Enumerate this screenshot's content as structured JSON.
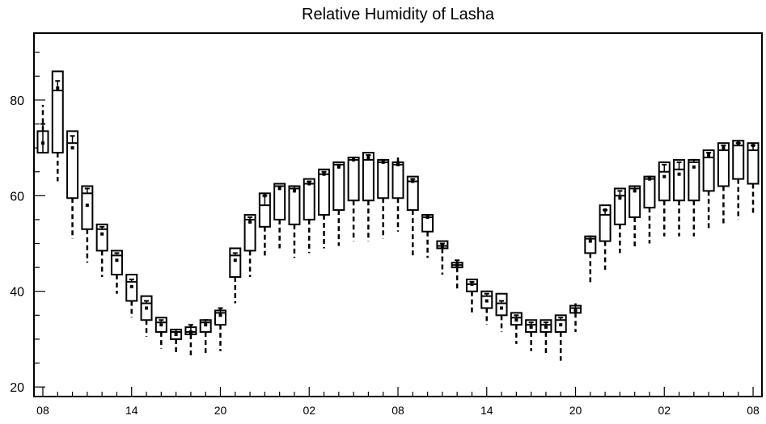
{
  "chart_data": {
    "type": "box",
    "title": "Relative Humidity of Lasha",
    "xlabel": "",
    "ylabel": "",
    "ylim": [
      18,
      94
    ],
    "y_ticks": [
      20,
      40,
      60,
      80
    ],
    "x_tick_labels": [
      "08",
      "14",
      "20",
      "02",
      "08",
      "14",
      "20",
      "02",
      "08"
    ],
    "x_tick_positions": [
      0,
      6,
      12,
      18,
      24,
      30,
      36,
      42,
      48
    ],
    "x_range": [
      -0.6,
      48.6
    ],
    "series": [
      {
        "x": 0,
        "q1": 69.0,
        "q3": 73.5,
        "median": 69.0,
        "top": 75.0,
        "bottom": 69.0,
        "wmax": 79.0,
        "wmin": 69.0,
        "mean": 71.0
      },
      {
        "x": 1,
        "q1": 69.0,
        "q3": 86.0,
        "median": 82.0,
        "top": 84.0,
        "bottom": 69.0,
        "wmax": 86.0,
        "wmin": 63.0,
        "mean": 82.5
      },
      {
        "x": 2,
        "q1": 59.5,
        "q3": 73.5,
        "median": 71.0,
        "top": 72.5,
        "bottom": 59.5,
        "wmax": 73.5,
        "wmin": 51.0,
        "mean": 70.0
      },
      {
        "x": 3,
        "q1": 53.0,
        "q3": 62.0,
        "median": 60.5,
        "top": 61.5,
        "bottom": 53.0,
        "wmax": 62.0,
        "wmin": 46.0,
        "mean": 58.0
      },
      {
        "x": 4,
        "q1": 48.5,
        "q3": 54.0,
        "median": 53.0,
        "top": 53.5,
        "bottom": 48.5,
        "wmax": 54.0,
        "wmin": 43.0,
        "mean": 52.0
      },
      {
        "x": 5,
        "q1": 43.5,
        "q3": 48.5,
        "median": 47.5,
        "top": 48.0,
        "bottom": 43.5,
        "wmax": 48.5,
        "wmin": 39.5,
        "mean": 46.5
      },
      {
        "x": 6,
        "q1": 38.0,
        "q3": 43.5,
        "median": 42.0,
        "top": 42.5,
        "bottom": 38.0,
        "wmax": 43.5,
        "wmin": 34.5,
        "mean": 41.0
      },
      {
        "x": 7,
        "q1": 34.0,
        "q3": 39.0,
        "median": 37.5,
        "top": 38.0,
        "bottom": 34.0,
        "wmax": 39.0,
        "wmin": 30.5,
        "mean": 36.5
      },
      {
        "x": 8,
        "q1": 31.5,
        "q3": 34.5,
        "median": 33.5,
        "top": 34.0,
        "bottom": 31.5,
        "wmax": 34.5,
        "wmin": 28.0,
        "mean": 33.0
      },
      {
        "x": 9,
        "q1": 30.0,
        "q3": 32.0,
        "median": 31.5,
        "top": 32.0,
        "bottom": 30.0,
        "wmax": 32.0,
        "wmin": 27.0,
        "mean": 31.0
      },
      {
        "x": 10,
        "q1": 31.0,
        "q3": 32.5,
        "median": 31.5,
        "top": 33.0,
        "bottom": 31.0,
        "wmax": 33.0,
        "wmin": 26.5,
        "mean": 31.5
      },
      {
        "x": 11,
        "q1": 31.5,
        "q3": 34.0,
        "median": 33.5,
        "top": 34.0,
        "bottom": 31.5,
        "wmax": 34.0,
        "wmin": 26.5,
        "mean": 33.0
      },
      {
        "x": 12,
        "q1": 33.0,
        "q3": 36.0,
        "median": 35.5,
        "top": 36.5,
        "bottom": 33.0,
        "wmax": 36.5,
        "wmin": 27.5,
        "mean": 35.0
      },
      {
        "x": 13,
        "q1": 43.0,
        "q3": 49.0,
        "median": 47.5,
        "top": 48.0,
        "bottom": 43.0,
        "wmax": 49.0,
        "wmin": 37.5,
        "mean": 46.5
      },
      {
        "x": 14,
        "q1": 48.5,
        "q3": 56.0,
        "median": 55.0,
        "top": 55.5,
        "bottom": 48.5,
        "wmax": 56.0,
        "wmin": 43.0,
        "mean": 54.5
      },
      {
        "x": 15,
        "q1": 53.5,
        "q3": 60.5,
        "median": 58.0,
        "top": 60.0,
        "bottom": 53.5,
        "wmax": 60.5,
        "wmin": 47.5,
        "mean": 60.0
      },
      {
        "x": 16,
        "q1": 55.0,
        "q3": 62.5,
        "median": 62.0,
        "top": 62.0,
        "bottom": 55.0,
        "wmax": 62.5,
        "wmin": 49.0,
        "mean": 61.5
      },
      {
        "x": 17,
        "q1": 54.0,
        "q3": 62.0,
        "median": 61.5,
        "top": 62.0,
        "bottom": 54.0,
        "wmax": 62.0,
        "wmin": 47.0,
        "mean": 61.0
      },
      {
        "x": 18,
        "q1": 55.0,
        "q3": 63.5,
        "median": 62.5,
        "top": 63.0,
        "bottom": 55.0,
        "wmax": 63.5,
        "wmin": 48.0,
        "mean": 62.5
      },
      {
        "x": 19,
        "q1": 56.0,
        "q3": 65.5,
        "median": 64.5,
        "top": 65.0,
        "bottom": 56.0,
        "wmax": 65.5,
        "wmin": 49.0,
        "mean": 64.5
      },
      {
        "x": 20,
        "q1": 57.0,
        "q3": 67.0,
        "median": 66.5,
        "top": 66.5,
        "bottom": 57.0,
        "wmax": 67.0,
        "wmin": 49.5,
        "mean": 66.0
      },
      {
        "x": 21,
        "q1": 59.0,
        "q3": 68.0,
        "median": 67.5,
        "top": 68.0,
        "bottom": 59.0,
        "wmax": 68.0,
        "wmin": 50.5,
        "mean": 67.5
      },
      {
        "x": 22,
        "q1": 59.0,
        "q3": 69.0,
        "median": 67.5,
        "top": 68.5,
        "bottom": 59.0,
        "wmax": 69.0,
        "wmin": 50.5,
        "mean": 68.0
      },
      {
        "x": 23,
        "q1": 59.5,
        "q3": 67.5,
        "median": 67.0,
        "top": 67.5,
        "bottom": 59.5,
        "wmax": 67.5,
        "wmin": 51.0,
        "mean": 67.0
      },
      {
        "x": 24,
        "q1": 59.5,
        "q3": 67.0,
        "median": 66.5,
        "top": 67.0,
        "bottom": 59.5,
        "wmax": 68.0,
        "wmin": 52.5,
        "mean": 66.5
      },
      {
        "x": 25,
        "q1": 57.0,
        "q3": 64.0,
        "median": 63.0,
        "top": 63.5,
        "bottom": 57.0,
        "wmax": 64.0,
        "wmin": 47.5,
        "mean": 63.0
      },
      {
        "x": 26,
        "q1": 52.5,
        "q3": 56.0,
        "median": 55.5,
        "top": 56.0,
        "bottom": 52.5,
        "wmax": 56.0,
        "wmin": 47.0,
        "mean": 55.5
      },
      {
        "x": 27,
        "q1": 49.0,
        "q3": 50.5,
        "median": 49.5,
        "top": 50.0,
        "bottom": 49.0,
        "wmax": 50.5,
        "wmin": 43.5,
        "mean": 49.5
      },
      {
        "x": 28,
        "q1": 45.0,
        "q3": 46.0,
        "median": 45.5,
        "top": 46.5,
        "bottom": 45.0,
        "wmax": 46.5,
        "wmin": 40.0,
        "mean": 45.5
      },
      {
        "x": 29,
        "q1": 40.0,
        "q3": 42.5,
        "median": 41.5,
        "top": 42.0,
        "bottom": 40.0,
        "wmax": 42.5,
        "wmin": 35.5,
        "mean": 41.5
      },
      {
        "x": 30,
        "q1": 36.5,
        "q3": 40.0,
        "median": 39.0,
        "top": 39.5,
        "bottom": 36.5,
        "wmax": 40.0,
        "wmin": 33.0,
        "mean": 38.0
      },
      {
        "x": 31,
        "q1": 35.0,
        "q3": 39.5,
        "median": 37.5,
        "top": 38.0,
        "bottom": 35.0,
        "wmax": 39.5,
        "wmin": 31.5,
        "mean": 36.5
      },
      {
        "x": 32,
        "q1": 33.0,
        "q3": 35.5,
        "median": 34.5,
        "top": 35.0,
        "bottom": 33.0,
        "wmax": 35.5,
        "wmin": 29.0,
        "mean": 34.0
      },
      {
        "x": 33,
        "q1": 31.5,
        "q3": 34.0,
        "median": 33.0,
        "top": 33.5,
        "bottom": 31.5,
        "wmax": 34.0,
        "wmin": 27.5,
        "mean": 32.5
      },
      {
        "x": 34,
        "q1": 31.5,
        "q3": 34.0,
        "median": 33.0,
        "top": 33.5,
        "bottom": 31.5,
        "wmax": 34.0,
        "wmin": 26.5,
        "mean": 32.5
      },
      {
        "x": 35,
        "q1": 31.5,
        "q3": 35.0,
        "median": 34.0,
        "top": 34.5,
        "bottom": 31.5,
        "wmax": 35.0,
        "wmin": 25.5,
        "mean": 33.0
      },
      {
        "x": 36,
        "q1": 35.5,
        "q3": 37.0,
        "median": 36.5,
        "top": 37.0,
        "bottom": 35.5,
        "wmax": 37.5,
        "wmin": 31.5,
        "mean": 36.0
      },
      {
        "x": 37,
        "q1": 48.0,
        "q3": 51.5,
        "median": 51.0,
        "top": 51.5,
        "bottom": 48.0,
        "wmax": 51.5,
        "wmin": 41.5,
        "mean": 50.5
      },
      {
        "x": 38,
        "q1": 50.5,
        "q3": 58.0,
        "median": 56.0,
        "top": 57.0,
        "bottom": 50.5,
        "wmax": 58.0,
        "wmin": 44.5,
        "mean": 57.0
      },
      {
        "x": 39,
        "q1": 54.0,
        "q3": 61.5,
        "median": 60.0,
        "top": 61.0,
        "bottom": 54.0,
        "wmax": 61.5,
        "wmin": 48.0,
        "mean": 59.5
      },
      {
        "x": 40,
        "q1": 55.5,
        "q3": 62.0,
        "median": 61.5,
        "top": 62.0,
        "bottom": 55.5,
        "wmax": 62.0,
        "wmin": 49.0,
        "mean": 61.0
      },
      {
        "x": 41,
        "q1": 57.5,
        "q3": 64.0,
        "median": 63.5,
        "top": 64.0,
        "bottom": 57.5,
        "wmax": 64.0,
        "wmin": 50.0,
        "mean": 63.5
      },
      {
        "x": 42,
        "q1": 59.0,
        "q3": 67.0,
        "median": 65.0,
        "top": 66.5,
        "bottom": 59.0,
        "wmax": 67.0,
        "wmin": 51.5,
        "mean": 64.0
      },
      {
        "x": 43,
        "q1": 59.0,
        "q3": 67.5,
        "median": 65.5,
        "top": 67.0,
        "bottom": 59.0,
        "wmax": 67.5,
        "wmin": 51.5,
        "mean": 64.5
      },
      {
        "x": 44,
        "q1": 59.0,
        "q3": 67.5,
        "median": 67.0,
        "top": 67.5,
        "bottom": 59.0,
        "wmax": 67.5,
        "wmin": 51.5,
        "mean": 66.0
      },
      {
        "x": 45,
        "q1": 61.0,
        "q3": 69.5,
        "median": 68.0,
        "top": 69.0,
        "bottom": 61.0,
        "wmax": 69.5,
        "wmin": 53.0,
        "mean": 68.5
      },
      {
        "x": 46,
        "q1": 62.0,
        "q3": 71.0,
        "median": 69.5,
        "top": 70.5,
        "bottom": 62.0,
        "wmax": 71.0,
        "wmin": 54.0,
        "mean": 70.0
      },
      {
        "x": 47,
        "q1": 63.5,
        "q3": 71.5,
        "median": 70.5,
        "top": 71.0,
        "bottom": 63.5,
        "wmax": 71.5,
        "wmin": 55.0,
        "mean": 71.0
      },
      {
        "x": 48,
        "q1": 62.5,
        "q3": 71.0,
        "median": 69.5,
        "top": 70.5,
        "bottom": 62.5,
        "wmax": 71.0,
        "wmin": 56.0,
        "mean": 70.5
      }
    ]
  }
}
